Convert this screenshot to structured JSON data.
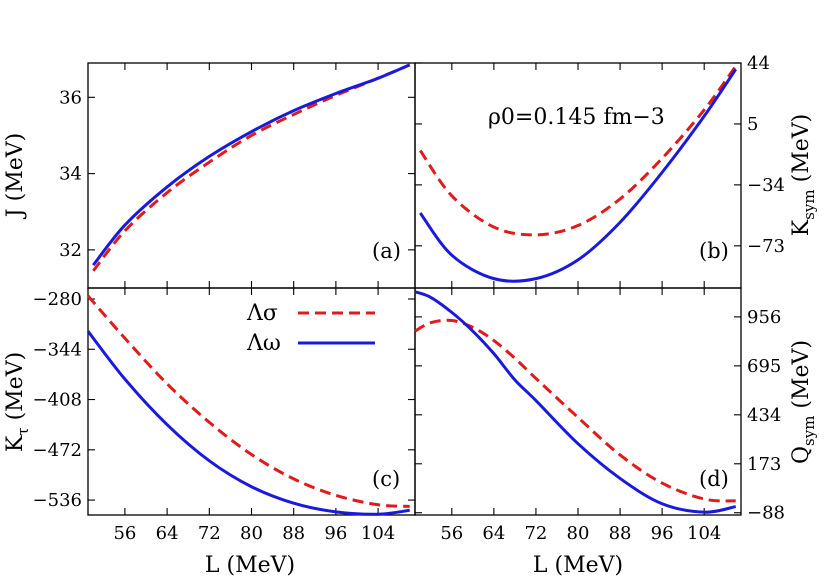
{
  "colors": {
    "sigma": "#e01b1b",
    "omega": "#1a1adc"
  },
  "legend": {
    "sigma": "Λσ",
    "omega": "Λω"
  },
  "annotation": "ρ0=0.145 fm−3",
  "chart_data": [
    {
      "id": "a",
      "type": "line",
      "panel_label": "(a)",
      "ylabel": "J (MeV)",
      "xlabel": "",
      "xlim": [
        49,
        111
      ],
      "ylim": [
        31.0,
        36.9
      ],
      "yticks": [
        32,
        34,
        36
      ],
      "yaxis_side": "left",
      "series": [
        {
          "name": "Λσ",
          "style": "dashed",
          "x": [
            50,
            56,
            64,
            72,
            80,
            88,
            96,
            104,
            110
          ],
          "y": [
            31.45,
            32.5,
            33.5,
            34.3,
            35.0,
            35.55,
            36.05,
            36.5,
            36.85
          ]
        },
        {
          "name": "Λω",
          "style": "solid",
          "x": [
            50,
            56,
            64,
            72,
            80,
            88,
            96,
            104,
            110
          ],
          "y": [
            31.6,
            32.65,
            33.65,
            34.45,
            35.1,
            35.65,
            36.1,
            36.5,
            36.85
          ]
        }
      ]
    },
    {
      "id": "b",
      "type": "line",
      "panel_label": "(b)",
      "ylabel": "Ksym (MeV)",
      "xlabel": "",
      "xlim": [
        49,
        111
      ],
      "ylim": [
        -100,
        44
      ],
      "yticks": [
        -73,
        -34,
        5,
        44
      ],
      "yaxis_side": "right",
      "series": [
        {
          "name": "Λσ",
          "style": "dashed",
          "x": [
            50,
            56,
            64,
            72,
            80,
            88,
            96,
            104,
            110
          ],
          "y": [
            -12,
            -41,
            -61,
            -66,
            -60,
            -43,
            -17,
            14,
            42
          ]
        },
        {
          "name": "Λω",
          "style": "solid",
          "x": [
            50,
            56,
            64,
            72,
            80,
            88,
            96,
            104,
            110
          ],
          "y": [
            -52,
            -79,
            -94,
            -94,
            -82,
            -58,
            -26,
            10,
            40
          ]
        }
      ]
    },
    {
      "id": "c",
      "type": "line",
      "panel_label": "(c)",
      "ylabel": "Kτ (MeV)",
      "xlabel": "L (MeV)",
      "xlim": [
        49,
        111
      ],
      "ylim": [
        -555,
        -266
      ],
      "yticks": [
        -536,
        -472,
        -408,
        -344,
        -280
      ],
      "yaxis_side": "left",
      "xticks": [
        56,
        64,
        72,
        80,
        88,
        96,
        104
      ],
      "series": [
        {
          "name": "Λσ",
          "style": "dashed",
          "x": [
            49,
            56,
            64,
            72,
            80,
            88,
            96,
            104,
            110
          ],
          "y": [
            -276,
            -330,
            -388,
            -437,
            -478,
            -509,
            -530,
            -542,
            -544
          ]
        },
        {
          "name": "Λω",
          "style": "solid",
          "x": [
            49,
            56,
            64,
            72,
            80,
            88,
            96,
            104,
            110
          ],
          "y": [
            -321,
            -382,
            -440,
            -486,
            -519,
            -540,
            -551,
            -554,
            -549
          ]
        }
      ]
    },
    {
      "id": "d",
      "type": "line",
      "panel_label": "(d)",
      "ylabel": "Qsym (MeV)",
      "xlabel": "L (MeV)",
      "xlim": [
        49,
        111
      ],
      "ylim": [
        -100,
        1110
      ],
      "yticks": [
        -88,
        173,
        434,
        695,
        956
      ],
      "yaxis_side": "right",
      "xticks": [
        56,
        64,
        72,
        80,
        88,
        96,
        104
      ],
      "series": [
        {
          "name": "Λσ",
          "style": "dashed",
          "x": [
            49,
            52,
            56,
            60,
            64,
            68,
            72,
            80,
            88,
            96,
            104,
            110
          ],
          "y": [
            880,
            925,
            937,
            900,
            830,
            735,
            628,
            420,
            220,
            70,
            -15,
            -25
          ]
        },
        {
          "name": "Λω",
          "style": "solid",
          "x": [
            49,
            52,
            56,
            60,
            64,
            68,
            72,
            80,
            88,
            96,
            104,
            110
          ],
          "y": [
            1090,
            1060,
            980,
            880,
            760,
            620,
            510,
            280,
            95,
            -40,
            -85,
            -55
          ]
        }
      ]
    }
  ]
}
